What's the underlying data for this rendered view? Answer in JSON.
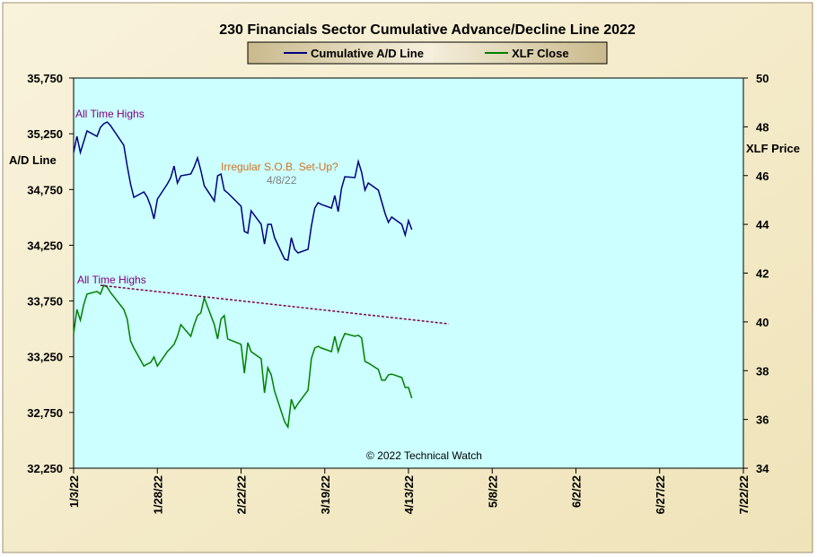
{
  "chart_data": {
    "type": "line",
    "title": "230 Financials  Sector Cumulative  Advance/Decline  Line 2022",
    "y_label": "A/D Line",
    "y2_label": "XLF Price",
    "x": [
      "1/3/22",
      "1/4/22",
      "1/5/22",
      "1/6/22",
      "1/7/22",
      "1/10/22",
      "1/11/22",
      "1/12/22",
      "1/13/22",
      "1/14/22",
      "1/18/22",
      "1/19/22",
      "1/20/22",
      "1/21/22",
      "1/24/22",
      "1/25/22",
      "1/26/22",
      "1/27/22",
      "1/28/22",
      "1/31/22",
      "2/1/22",
      "2/2/22",
      "2/3/22",
      "2/4/22",
      "2/7/22",
      "2/8/22",
      "2/9/22",
      "2/10/22",
      "2/11/22",
      "2/14/22",
      "2/15/22",
      "2/16/22",
      "2/17/22",
      "2/18/22",
      "2/22/22",
      "2/23/22",
      "2/24/22",
      "2/25/22",
      "2/28/22",
      "3/1/22",
      "3/2/22",
      "3/3/22",
      "3/4/22",
      "3/7/22",
      "3/8/22",
      "3/9/22",
      "3/10/22",
      "3/11/22",
      "3/14/22",
      "3/15/22",
      "3/16/22",
      "3/17/22",
      "3/18/22",
      "3/21/22",
      "3/22/22",
      "3/23/22",
      "3/24/22",
      "3/25/22",
      "3/28/22",
      "3/29/22",
      "3/30/22",
      "3/31/22",
      "4/1/22",
      "4/4/22",
      "4/5/22",
      "4/6/22",
      "4/7/22",
      "4/8/22",
      "4/11/22",
      "4/12/22",
      "4/13/22",
      "4/14/22"
    ],
    "series": [
      {
        "name": "Cumulative A/D Line",
        "color": "#000080",
        "axis": "y",
        "values": [
          35082,
          35227,
          35082,
          35179,
          35275,
          35227,
          35307,
          35340,
          35356,
          35324,
          35147,
          34961,
          34800,
          34680,
          34728,
          34680,
          34600,
          34487,
          34664,
          34800,
          34857,
          34961,
          34808,
          34873,
          34889,
          34953,
          35034,
          34921,
          34784,
          34647,
          34873,
          34889,
          34744,
          34720,
          34600,
          34374,
          34358,
          34559,
          34438,
          34261,
          34438,
          34438,
          34318,
          34125,
          34117,
          34318,
          34213,
          34181,
          34213,
          34422,
          34583,
          34632,
          34616,
          34583,
          34696,
          34551,
          34760,
          34865,
          34857,
          35002,
          34905,
          34744,
          34809,
          34744,
          34640,
          34535,
          34455,
          34503,
          34438,
          34342,
          34471,
          34390
        ]
      },
      {
        "name": "XLF Close",
        "color": "#008000",
        "axis": "y2",
        "values": [
          39.52,
          40.51,
          40.07,
          40.7,
          41.14,
          41.25,
          41.14,
          41.5,
          41.43,
          41.21,
          40.51,
          40.11,
          39.22,
          38.93,
          38.19,
          38.27,
          38.34,
          38.56,
          38.19,
          38.78,
          38.93,
          39.08,
          39.41,
          39.89,
          39.41,
          39.89,
          40.26,
          40.37,
          40.99,
          39.89,
          39.3,
          40.11,
          40.26,
          39.3,
          39.08,
          37.9,
          39.15,
          38.78,
          38.49,
          37.09,
          38.12,
          37.83,
          37.16,
          35.91,
          35.69,
          36.83,
          36.43,
          36.65,
          37.2,
          38.49,
          38.93,
          39.0,
          38.93,
          38.78,
          39.41,
          38.78,
          39.22,
          39.52,
          39.41,
          39.45,
          39.34,
          38.38,
          38.31,
          38.05,
          37.61,
          37.61,
          37.83,
          37.86,
          37.72,
          37.31,
          37.31,
          36.87
        ]
      }
    ],
    "trendline": {
      "x": [
        "1/11/22",
        "4/25/22"
      ],
      "values": [
        41.5,
        39.92
      ],
      "axis": "y2",
      "color": "#800040"
    },
    "xlim": [
      "1/3/22",
      "7/22/22"
    ],
    "xticks": [
      "1/3/22",
      "1/28/22",
      "2/22/22",
      "3/19/22",
      "4/13/22",
      "5/8/22",
      "6/2/22",
      "6/27/22",
      "7/22/22"
    ],
    "ylim": [
      32250,
      35750
    ],
    "yticks": [
      {
        "value": 32250,
        "label": "32,250"
      },
      {
        "value": 32750,
        "label": "32,750"
      },
      {
        "value": 33250,
        "label": "33,250"
      },
      {
        "value": 33750,
        "label": "33,750"
      },
      {
        "value": 34250,
        "label": "34,250"
      },
      {
        "value": 34750,
        "label": "34,750"
      },
      {
        "value": 35250,
        "label": "35,250"
      },
      {
        "value": 35750,
        "label": "35,750"
      }
    ],
    "y2lim": [
      34,
      50
    ],
    "y2ticks": [
      34,
      36,
      38,
      40,
      42,
      44,
      46,
      48,
      50
    ],
    "annotations": [
      "All Time Highs",
      "All Time Highs",
      "Irregular  S.O.B. Set-Up?",
      "4/8/22",
      "© 2022 Technical Watch"
    ],
    "plot_background": "#ccffff"
  }
}
